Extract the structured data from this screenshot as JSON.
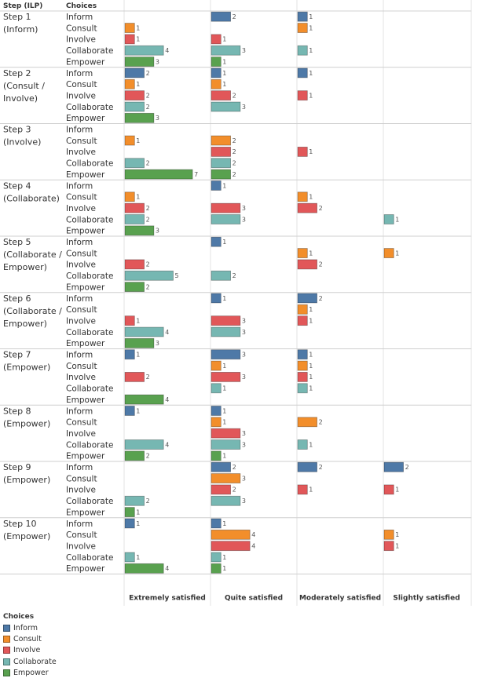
{
  "chart_data": {
    "type": "bar",
    "orientation": "horizontal",
    "row_header_1": "Step (ILP)",
    "row_header_2": "Choices",
    "columns": [
      "Extremely satisfied",
      "Quite satisfied",
      "Moderately satisfied",
      "Slightly satisfied"
    ],
    "legend_title": "Choices",
    "series": [
      {
        "name": "Inform",
        "color": "#4e79a7"
      },
      {
        "name": "Consult",
        "color": "#f28e2b"
      },
      {
        "name": "Involve",
        "color": "#e15759"
      },
      {
        "name": "Collaborate",
        "color": "#76b7b2"
      },
      {
        "name": "Empower",
        "color": "#59a14f"
      }
    ],
    "groups": [
      {
        "step": [
          "Step 1",
          "(Inform)"
        ],
        "values": [
          [
            null,
            2,
            1,
            null
          ],
          [
            1,
            null,
            1,
            null
          ],
          [
            1,
            1,
            null,
            null
          ],
          [
            4,
            3,
            1,
            null
          ],
          [
            3,
            1,
            null,
            null
          ]
        ]
      },
      {
        "step": [
          "Step 2",
          "(Consult /",
          "Involve)"
        ],
        "values": [
          [
            2,
            1,
            1,
            null
          ],
          [
            1,
            1,
            null,
            null
          ],
          [
            2,
            2,
            1,
            null
          ],
          [
            2,
            3,
            null,
            null
          ],
          [
            3,
            null,
            null,
            null
          ]
        ]
      },
      {
        "step": [
          "Step 3",
          "(Involve)"
        ],
        "values": [
          [
            null,
            null,
            null,
            null
          ],
          [
            1,
            2,
            null,
            null
          ],
          [
            null,
            2,
            1,
            null
          ],
          [
            2,
            2,
            null,
            null
          ],
          [
            7,
            2,
            null,
            null
          ]
        ]
      },
      {
        "step": [
          "Step 4",
          "(Collaborate)"
        ],
        "values": [
          [
            null,
            1,
            null,
            null
          ],
          [
            1,
            null,
            1,
            null
          ],
          [
            2,
            3,
            2,
            null
          ],
          [
            2,
            3,
            null,
            1
          ],
          [
            3,
            null,
            null,
            null
          ]
        ]
      },
      {
        "step": [
          "Step 5",
          "(Collaborate /",
          "Empower)"
        ],
        "values": [
          [
            null,
            1,
            null,
            null
          ],
          [
            null,
            null,
            1,
            1
          ],
          [
            2,
            null,
            2,
            null
          ],
          [
            5,
            2,
            null,
            null
          ],
          [
            2,
            null,
            null,
            null
          ]
        ]
      },
      {
        "step": [
          "Step 6",
          "(Collaborate /",
          "Empower)"
        ],
        "values": [
          [
            null,
            1,
            2,
            null
          ],
          [
            null,
            null,
            1,
            null
          ],
          [
            1,
            3,
            1,
            null
          ],
          [
            4,
            3,
            null,
            null
          ],
          [
            3,
            null,
            null,
            null
          ]
        ]
      },
      {
        "step": [
          "Step 7",
          "(Empower)"
        ],
        "values": [
          [
            1,
            3,
            1,
            null
          ],
          [
            null,
            1,
            1,
            null
          ],
          [
            2,
            3,
            1,
            null
          ],
          [
            null,
            1,
            1,
            null
          ],
          [
            4,
            null,
            null,
            null
          ]
        ]
      },
      {
        "step": [
          "Step 8",
          "(Empower)"
        ],
        "values": [
          [
            1,
            1,
            null,
            null
          ],
          [
            null,
            1,
            2,
            null
          ],
          [
            null,
            3,
            null,
            null
          ],
          [
            4,
            3,
            1,
            null
          ],
          [
            2,
            1,
            null,
            null
          ]
        ]
      },
      {
        "step": [
          "Step 9",
          "(Empower)"
        ],
        "values": [
          [
            null,
            2,
            2,
            2
          ],
          [
            null,
            3,
            null,
            null
          ],
          [
            null,
            2,
            1,
            1
          ],
          [
            2,
            3,
            null,
            null
          ],
          [
            1,
            null,
            null,
            null
          ]
        ]
      },
      {
        "step": [
          "Step 10",
          "(Empower)"
        ],
        "values": [
          [
            1,
            1,
            null,
            null
          ],
          [
            null,
            4,
            null,
            1
          ],
          [
            null,
            4,
            null,
            1
          ],
          [
            1,
            1,
            null,
            null
          ],
          [
            4,
            1,
            null,
            null
          ]
        ]
      }
    ]
  }
}
